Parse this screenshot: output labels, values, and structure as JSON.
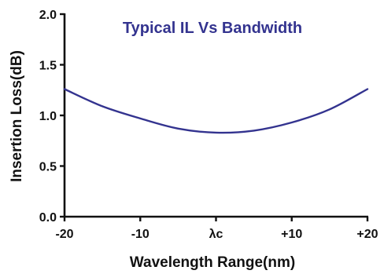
{
  "chart_data": {
    "type": "line",
    "title": "Typical IL Vs Bandwidth",
    "xlabel": "Wavelength Range(nm)",
    "ylabel": "Insertion Loss(dB)",
    "xlim": [
      -20,
      20
    ],
    "ylim": [
      0.0,
      2.0
    ],
    "x_ticks": [
      {
        "value": -20,
        "label": "-20"
      },
      {
        "value": -10,
        "label": "-10"
      },
      {
        "value": 0,
        "label": "λc"
      },
      {
        "value": 10,
        "label": "+10"
      },
      {
        "value": 20,
        "label": "+20"
      }
    ],
    "y_ticks": [
      {
        "value": 0.0,
        "label": "0.0"
      },
      {
        "value": 0.5,
        "label": "0.5"
      },
      {
        "value": 1.0,
        "label": "1.0"
      },
      {
        "value": 1.5,
        "label": "1.5"
      },
      {
        "value": 2.0,
        "label": "2.0"
      }
    ],
    "grid": false,
    "legend": "none",
    "series": [
      {
        "color": "#33338f",
        "x": [
          -20,
          -15,
          -10,
          -5,
          0,
          5,
          10,
          15,
          20
        ],
        "y": [
          1.26,
          1.09,
          0.97,
          0.87,
          0.83,
          0.85,
          0.93,
          1.06,
          1.26
        ]
      }
    ],
    "colors": {
      "title": "#33338f",
      "axis": "#111111",
      "text": "#111111"
    }
  }
}
